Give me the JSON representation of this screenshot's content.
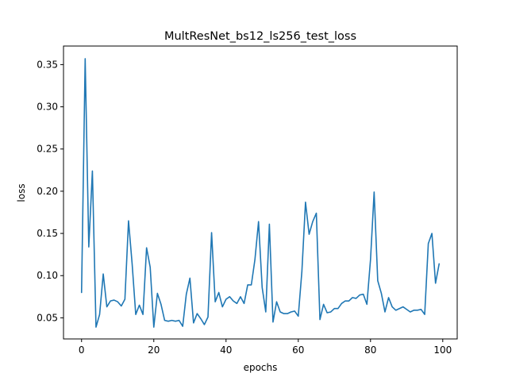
{
  "chart_data": {
    "type": "line",
    "title": "MultResNet_bs12_ls256_test_loss",
    "xlabel": "epochs",
    "ylabel": "loss",
    "xlim": [
      -5,
      104
    ],
    "ylim": [
      0.025,
      0.372
    ],
    "xticks": [
      0,
      20,
      40,
      60,
      80,
      100
    ],
    "yticks": [
      0.05,
      0.1,
      0.15,
      0.2,
      0.25,
      0.3,
      0.35
    ],
    "ytick_labels": [
      "0.05",
      "0.10",
      "0.15",
      "0.20",
      "0.25",
      "0.30",
      "0.35"
    ],
    "grid": false,
    "series": [
      {
        "color": "#1f77b4",
        "x": [
          0,
          1,
          2,
          3,
          4,
          5,
          6,
          7,
          8,
          9,
          10,
          11,
          12,
          13,
          14,
          15,
          16,
          17,
          18,
          19,
          20,
          21,
          22,
          23,
          24,
          25,
          26,
          27,
          28,
          29,
          30,
          31,
          32,
          33,
          34,
          35,
          36,
          37,
          38,
          39,
          40,
          41,
          42,
          43,
          44,
          45,
          46,
          47,
          48,
          49,
          50,
          51,
          52,
          53,
          54,
          55,
          56,
          57,
          58,
          59,
          60,
          61,
          62,
          63,
          64,
          65,
          66,
          67,
          68,
          69,
          70,
          71,
          72,
          73,
          74,
          75,
          76,
          77,
          78,
          79,
          80,
          81,
          82,
          83,
          84,
          85,
          86,
          87,
          88,
          89,
          90,
          91,
          92,
          93,
          94,
          95,
          96,
          97,
          98,
          99
        ],
        "y": [
          0.08,
          0.357,
          0.134,
          0.224,
          0.039,
          0.054,
          0.102,
          0.063,
          0.07,
          0.071,
          0.069,
          0.064,
          0.072,
          0.165,
          0.114,
          0.054,
          0.065,
          0.054,
          0.133,
          0.11,
          0.039,
          0.079,
          0.066,
          0.047,
          0.046,
          0.047,
          0.046,
          0.047,
          0.04,
          0.078,
          0.097,
          0.044,
          0.055,
          0.049,
          0.042,
          0.051,
          0.151,
          0.069,
          0.08,
          0.063,
          0.072,
          0.075,
          0.07,
          0.067,
          0.075,
          0.067,
          0.089,
          0.089,
          0.119,
          0.164,
          0.086,
          0.057,
          0.161,
          0.045,
          0.069,
          0.057,
          0.055,
          0.055,
          0.057,
          0.058,
          0.052,
          0.105,
          0.187,
          0.149,
          0.164,
          0.174,
          0.048,
          0.066,
          0.056,
          0.057,
          0.061,
          0.061,
          0.067,
          0.07,
          0.07,
          0.074,
          0.073,
          0.077,
          0.078,
          0.066,
          0.119,
          0.199,
          0.094,
          0.079,
          0.057,
          0.074,
          0.063,
          0.059,
          0.061,
          0.063,
          0.06,
          0.057,
          0.059,
          0.059,
          0.06,
          0.054,
          0.138,
          0.15,
          0.091,
          0.114
        ]
      }
    ]
  }
}
